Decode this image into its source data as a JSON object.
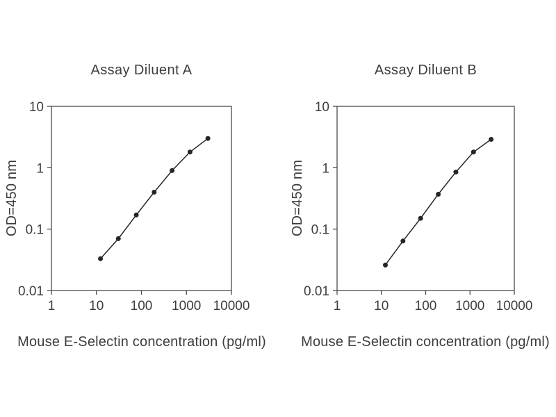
{
  "figure": {
    "background_color": "#ffffff",
    "text_color": "#3d3d3d",
    "curve_color": "#262626",
    "axis_color": "#4a4a4a"
  },
  "chart_data": [
    {
      "type": "line",
      "title": "Assay Diluent A",
      "xlabel": "Mouse E-Selectin concentration (pg/ml)",
      "ylabel": "OD=450 nm",
      "xscale": "log",
      "yscale": "log",
      "xlim": [
        1,
        10000
      ],
      "ylim": [
        0.01,
        10
      ],
      "grid": false,
      "legend": false,
      "x_ticks": [
        {
          "v": 1,
          "label": "1"
        },
        {
          "v": 10,
          "label": "10"
        },
        {
          "v": 100,
          "label": "100"
        },
        {
          "v": 1000,
          "label": "1000"
        },
        {
          "v": 10000,
          "label": "10000"
        }
      ],
      "y_ticks": [
        {
          "v": 0.01,
          "label": "0.01"
        },
        {
          "v": 0.1,
          "label": "0.1"
        },
        {
          "v": 1,
          "label": "1"
        },
        {
          "v": 10,
          "label": "10"
        }
      ],
      "series": [
        {
          "name": "standard-curve",
          "marker": "circle",
          "x": [
            12.3,
            30.7,
            76.8,
            192,
            480,
            1200,
            3000
          ],
          "y": [
            0.033,
            0.07,
            0.17,
            0.4,
            0.9,
            1.8,
            3.0
          ]
        }
      ]
    },
    {
      "type": "line",
      "title": "Assay Diluent B",
      "xlabel": "Mouse E-Selectin concentration (pg/ml)",
      "ylabel": "OD=450 nm",
      "xscale": "log",
      "yscale": "log",
      "xlim": [
        1,
        10000
      ],
      "ylim": [
        0.01,
        10
      ],
      "grid": false,
      "legend": false,
      "x_ticks": [
        {
          "v": 1,
          "label": "1"
        },
        {
          "v": 10,
          "label": "10"
        },
        {
          "v": 100,
          "label": "100"
        },
        {
          "v": 1000,
          "label": "1000"
        },
        {
          "v": 10000,
          "label": "10000"
        }
      ],
      "y_ticks": [
        {
          "v": 0.01,
          "label": "0.01"
        },
        {
          "v": 0.1,
          "label": "0.1"
        },
        {
          "v": 1,
          "label": "1"
        },
        {
          "v": 10,
          "label": "10"
        }
      ],
      "series": [
        {
          "name": "standard-curve",
          "marker": "circle",
          "x": [
            12.3,
            30.7,
            76.8,
            192,
            480,
            1200,
            3000
          ],
          "y": [
            0.026,
            0.064,
            0.15,
            0.37,
            0.85,
            1.8,
            2.9
          ]
        }
      ]
    }
  ]
}
